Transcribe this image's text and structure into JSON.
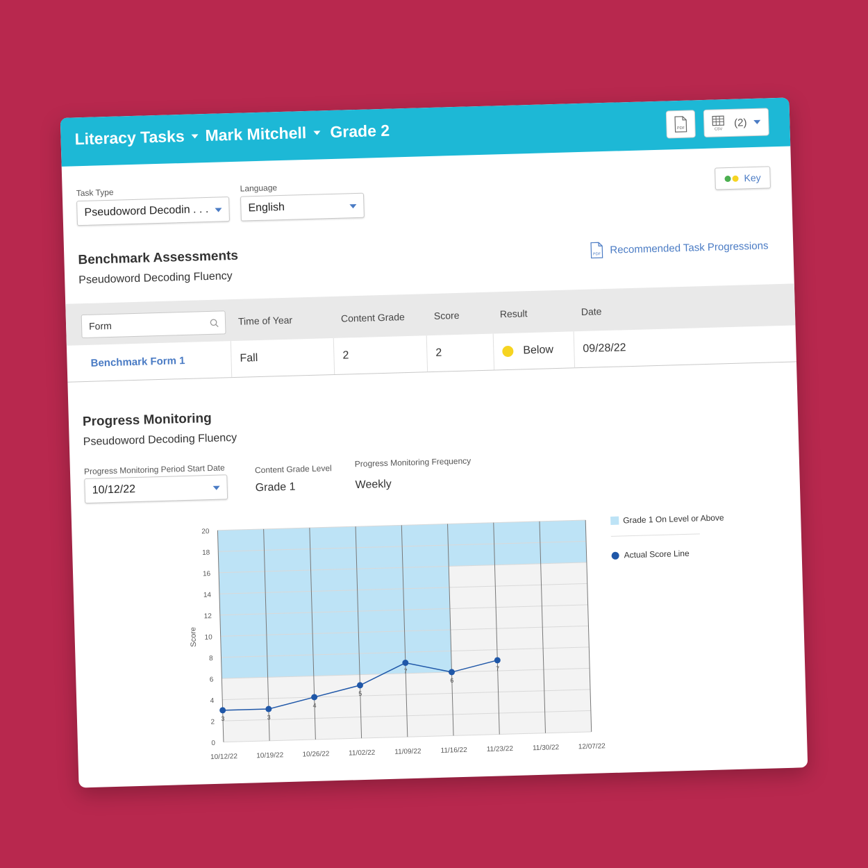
{
  "header": {
    "app_label": "Literacy Tasks",
    "student": "Mark Mitchell",
    "grade": "Grade 2",
    "pdf_label": "PDF",
    "csv_label": "CSV",
    "export_count": "(2)"
  },
  "filters": {
    "task_type_label": "Task Type",
    "task_type_value": "Pseudoword Decodin . . .",
    "language_label": "Language",
    "language_value": "English",
    "key_label": "Key"
  },
  "benchmark": {
    "title": "Benchmark Assessments",
    "subtitle": "Pseudoword Decoding Fluency",
    "recommended_link": "Recommended Task Progressions",
    "pdf_label": "PDF",
    "form_placeholder": "Form",
    "columns": [
      "Time of Year",
      "Content Grade",
      "Score",
      "Result",
      "Date"
    ],
    "rows": [
      {
        "form": "Benchmark Form 1",
        "time_of_year": "Fall",
        "content_grade": "2",
        "score": "2",
        "result": "Below",
        "result_color": "#f6d421",
        "date": "09/28/22"
      }
    ]
  },
  "progress": {
    "title": "Progress Monitoring",
    "subtitle": "Pseudoword Decoding Fluency",
    "start_date_label": "Progress Monitoring Period Start Date",
    "start_date_value": "10/12/22",
    "grade_level_label": "Content Grade Level",
    "grade_level_value": "Grade 1",
    "frequency_label": "Progress Monitoring Frequency",
    "frequency_value": "Weekly"
  },
  "colors": {
    "accent": "#1db8d6",
    "band": "#bde3f6",
    "line": "#1f57a8",
    "key_green": "#4caf50",
    "key_yellow": "#f6d421"
  },
  "chart_data": {
    "type": "line",
    "ylabel": "Score",
    "xlabel": "",
    "ylim": [
      0,
      20
    ],
    "y_ticks": [
      "0",
      "2",
      "4",
      "6",
      "8",
      "10",
      "12",
      "14",
      "16",
      "18",
      "20"
    ],
    "categories": [
      "10/12/22",
      "10/19/22",
      "10/26/22",
      "11/02/22",
      "11/09/22",
      "11/16/22",
      "11/23/22",
      "11/30/22",
      "12/07/22"
    ],
    "band": {
      "name": "Grade 1 On Level or Above",
      "lower": [
        6,
        6,
        6,
        6,
        6,
        16,
        16,
        16,
        16
      ],
      "upper": 20
    },
    "series": [
      {
        "name": "Actual Score Line",
        "values": [
          3,
          3,
          4,
          5,
          7,
          6,
          7,
          null,
          null
        ]
      }
    ],
    "grid": true,
    "legend_position": "right"
  }
}
